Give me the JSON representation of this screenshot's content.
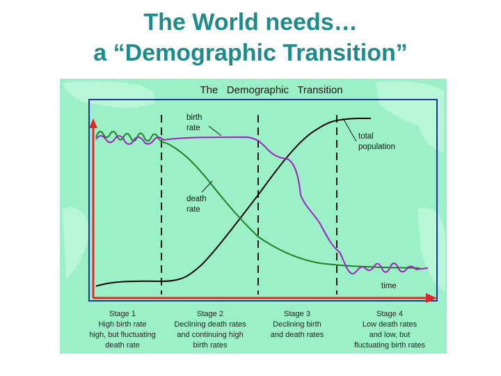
{
  "slide": {
    "title_line1": "The World needs…",
    "title_line2": "a “Demographic Transition”"
  },
  "figure": {
    "title": "The   Demographic   Transition",
    "colors": {
      "background": "#9cf0c8",
      "frame": "#2233a0",
      "axis": "#e32626",
      "birth_rate": "#a020c0",
      "death_rate": "#1e8020",
      "total_population": "#000000",
      "stage_text": "#222222"
    },
    "labels": {
      "birth_rate": [
        "birth",
        "rate"
      ],
      "death_rate": [
        "death",
        "rate"
      ],
      "total_population": [
        "total",
        "population"
      ],
      "time": "time"
    },
    "stages": [
      {
        "name": "Stage 1",
        "desc": [
          "High birth rate",
          "high, but fluctuating",
          "death rate"
        ]
      },
      {
        "name": "Stage 2",
        "desc": [
          "Declining death rates",
          "and continuing high",
          "birth rates"
        ]
      },
      {
        "name": "Stage 3",
        "desc": [
          "Declining birth",
          "and death rates"
        ]
      },
      {
        "name": "Stage 4",
        "desc": [
          "Low death rates",
          "and low, but",
          "fluctuating birth rates"
        ]
      }
    ]
  }
}
